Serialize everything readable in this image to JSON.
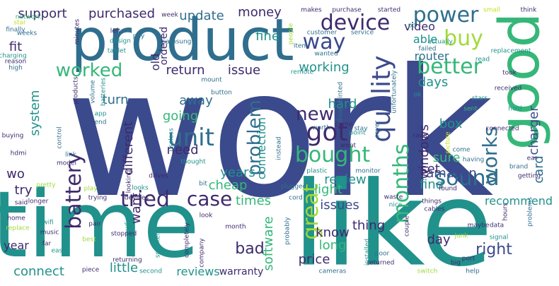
{
  "colors": {
    "navy": "#3b4a8c",
    "steel": "#2f6e8e",
    "blue": "#31688e",
    "teal": "#21918c",
    "green": "#35b779",
    "lime": "#a0da39",
    "yellow": "#c8e020",
    "purple": "#482475",
    "darkpurple": "#3e2a6d"
  },
  "words": [
    {
      "id": "work",
      "text": "work"
    },
    {
      "id": "like",
      "text": "like"
    },
    {
      "id": "time",
      "text": "time"
    },
    {
      "id": "product",
      "text": "product"
    },
    {
      "id": "good",
      "text": "good"
    },
    {
      "id": "device",
      "text": "device"
    },
    {
      "id": "power",
      "text": "power"
    },
    {
      "id": "way",
      "text": "way"
    },
    {
      "id": "buy",
      "text": "buy"
    },
    {
      "id": "better",
      "text": "better"
    },
    {
      "id": "tried",
      "text": "tried"
    },
    {
      "id": "unit",
      "text": "unit"
    },
    {
      "id": "got",
      "text": "got"
    },
    {
      "id": "bought",
      "text": "bought"
    },
    {
      "id": "quality",
      "text": "quality"
    },
    {
      "id": "great",
      "text": "great"
    },
    {
      "id": "months",
      "text": "months"
    },
    {
      "id": "works",
      "text": "works"
    },
    {
      "id": "sound",
      "text": "sound"
    },
    {
      "id": "battery",
      "text": "battery"
    },
    {
      "id": "worked",
      "text": "worked"
    },
    {
      "id": "case",
      "text": "case"
    },
    {
      "id": "new",
      "text": "new"
    },
    {
      "id": "problem",
      "text": "problem"
    },
    {
      "id": "support",
      "text": "support"
    },
    {
      "id": "purchased",
      "text": "purchased"
    },
    {
      "id": "update",
      "text": "update"
    },
    {
      "id": "money",
      "text": "money"
    },
    {
      "id": "fine",
      "text": "fine"
    },
    {
      "id": "video",
      "text": "video"
    },
    {
      "id": "able",
      "text": "able"
    },
    {
      "id": "router",
      "text": "router"
    },
    {
      "id": "charger",
      "text": "charger"
    },
    {
      "id": "card",
      "text": "card"
    },
    {
      "id": "return",
      "text": "return"
    },
    {
      "id": "issue",
      "text": "issue"
    },
    {
      "id": "working",
      "text": "working"
    },
    {
      "id": "days",
      "text": "days"
    },
    {
      "id": "fit",
      "text": "fit"
    },
    {
      "id": "old",
      "text": "old"
    },
    {
      "id": "ordered",
      "text": "ordered"
    },
    {
      "id": "system",
      "text": "system"
    },
    {
      "id": "turn",
      "text": "turn"
    },
    {
      "id": "away",
      "text": "away"
    },
    {
      "id": "going",
      "text": "going"
    },
    {
      "id": "hard",
      "text": "hard"
    },
    {
      "id": "connection",
      "text": "connection"
    },
    {
      "id": "box",
      "text": "box"
    },
    {
      "id": "windows",
      "text": "windows"
    },
    {
      "id": "recommend",
      "text": "recommend"
    },
    {
      "id": "different",
      "text": "different"
    },
    {
      "id": "need",
      "text": "need"
    },
    {
      "id": "years",
      "text": "years"
    },
    {
      "id": "sure",
      "text": "sure"
    },
    {
      "id": "amazon",
      "text": "amazon"
    },
    {
      "id": "wo",
      "text": "wo"
    },
    {
      "id": "want",
      "text": "want"
    },
    {
      "id": "cheap",
      "text": "cheap"
    },
    {
      "id": "review",
      "text": "review"
    },
    {
      "id": "set",
      "text": "set"
    },
    {
      "id": "find",
      "text": "find"
    },
    {
      "id": "try",
      "text": "try"
    },
    {
      "id": "light",
      "text": "light"
    },
    {
      "id": "times",
      "text": "times"
    },
    {
      "id": "issues",
      "text": "issues"
    },
    {
      "id": "thing",
      "text": "thing"
    },
    {
      "id": "know",
      "text": "know"
    },
    {
      "id": "right",
      "text": "right"
    },
    {
      "id": "year",
      "text": "year"
    },
    {
      "id": "bad",
      "text": "bad"
    },
    {
      "id": "software",
      "text": "software"
    },
    {
      "id": "long",
      "text": "long"
    },
    {
      "id": "day",
      "text": "day"
    },
    {
      "id": "price",
      "text": "price"
    },
    {
      "id": "connect",
      "text": "connect"
    },
    {
      "id": "little",
      "text": "little"
    },
    {
      "id": "reviews",
      "text": "reviews"
    },
    {
      "id": "warranty",
      "text": "warranty"
    },
    {
      "id": "customer",
      "text": "customer"
    },
    {
      "id": "service",
      "text": "service"
    },
    {
      "id": "wanted",
      "text": "wanted"
    },
    {
      "id": "failed",
      "text": "failed"
    },
    {
      "id": "replacement",
      "text": "replacement"
    },
    {
      "id": "read",
      "text": "read"
    },
    {
      "id": "took",
      "text": "took"
    },
    {
      "id": "received",
      "text": "received"
    },
    {
      "id": "hold",
      "text": "hold"
    },
    {
      "id": "stars",
      "text": "stars"
    },
    {
      "id": "sent",
      "text": "sent"
    },
    {
      "id": "connected",
      "text": "connected"
    },
    {
      "id": "ear",
      "text": "ear"
    },
    {
      "id": "makes",
      "text": "makes"
    },
    {
      "id": "purchase",
      "text": "purchase"
    },
    {
      "id": "started",
      "text": "started"
    },
    {
      "id": "small",
      "text": "small"
    },
    {
      "id": "think",
      "text": "think"
    },
    {
      "id": "week",
      "text": "week"
    },
    {
      "id": "left",
      "text": "left"
    },
    {
      "id": "design",
      "text": "design"
    },
    {
      "id": "pay",
      "text": "pay"
    },
    {
      "id": "tablet",
      "text": "tablet"
    },
    {
      "id": "samsung",
      "text": "samsung"
    },
    {
      "id": "mount",
      "text": "mount"
    },
    {
      "id": "button",
      "text": "button"
    },
    {
      "id": "item",
      "text": "item"
    },
    {
      "id": "remote",
      "text": "remote"
    },
    {
      "id": "disappointed",
      "text": "disappointed"
    },
    {
      "id": "unfortunately",
      "text": "unfortunately"
    },
    {
      "id": "ok",
      "text": "ok"
    },
    {
      "id": "actually",
      "text": "actually"
    },
    {
      "id": "pc",
      "text": "pc"
    },
    {
      "id": "people",
      "text": "people"
    },
    {
      "id": "star",
      "text": "star"
    },
    {
      "id": "finally",
      "text": "finally"
    },
    {
      "id": "weeks",
      "text": "weeks"
    },
    {
      "id": "charging",
      "text": "charging"
    },
    {
      "id": "reason",
      "text": "reason"
    },
    {
      "id": "high",
      "text": "high"
    },
    {
      "id": "minutes",
      "text": "minutes"
    },
    {
      "id": "products",
      "text": "products"
    },
    {
      "id": "volume",
      "text": "volume"
    },
    {
      "id": "batteries",
      "text": "batteries"
    },
    {
      "id": "app",
      "text": "app"
    },
    {
      "id": "end",
      "text": "end"
    },
    {
      "id": "control",
      "text": "control"
    },
    {
      "id": "useless",
      "text": "useless"
    },
    {
      "id": "worth",
      "text": "worth"
    },
    {
      "id": "came",
      "text": "came"
    },
    {
      "id": "stay",
      "text": "stay"
    },
    {
      "id": "point",
      "text": "point"
    },
    {
      "id": "cover",
      "text": "cover"
    },
    {
      "id": "went",
      "text": "went"
    },
    {
      "id": "instead",
      "text": "instead"
    },
    {
      "id": "buying",
      "text": "buying"
    },
    {
      "id": "hdmi",
      "text": "hdmi"
    },
    {
      "id": "link",
      "text": "link"
    },
    {
      "id": "model",
      "text": "model"
    },
    {
      "id": "thought",
      "text": "thought"
    },
    {
      "id": "plastic",
      "text": "plastic"
    },
    {
      "id": "monitor",
      "text": "monitor"
    },
    {
      "id": "radio",
      "text": "radio"
    },
    {
      "id": "picture",
      "text": "picture"
    },
    {
      "id": "come",
      "text": "come"
    },
    {
      "id": "having",
      "text": "having"
    },
    {
      "id": "brand",
      "text": "brand"
    },
    {
      "id": "getting",
      "text": "getting"
    },
    {
      "id": "found",
      "text": "found"
    },
    {
      "id": "things",
      "text": "things"
    },
    {
      "id": "waste",
      "text": "waste"
    },
    {
      "id": "nice",
      "text": "nice"
    },
    {
      "id": "plugged",
      "text": "plugged"
    },
    {
      "id": "cord",
      "text": "cord"
    },
    {
      "id": "pretty",
      "text": "pretty"
    },
    {
      "id": "play",
      "text": "play"
    },
    {
      "id": "looks",
      "text": "looks"
    },
    {
      "id": "drives",
      "text": "drives"
    },
    {
      "id": "devices",
      "text": "devices"
    },
    {
      "id": "bit",
      "text": "bit"
    },
    {
      "id": "looking",
      "text": "looking"
    },
    {
      "id": "trying",
      "text": "trying"
    },
    {
      "id": "said",
      "text": "said"
    },
    {
      "id": "longer",
      "text": "longer"
    },
    {
      "id": "home",
      "text": "home"
    },
    {
      "id": "wifi",
      "text": "wifi"
    },
    {
      "id": "music",
      "text": "music"
    },
    {
      "id": "replace",
      "text": "replace"
    },
    {
      "id": "far",
      "text": "far"
    },
    {
      "id": "easy",
      "text": "easy"
    },
    {
      "id": "best",
      "text": "best"
    },
    {
      "id": "pair",
      "text": "pair"
    },
    {
      "id": "audio",
      "text": "audio"
    },
    {
      "id": "stopped",
      "text": "stopped"
    },
    {
      "id": "speakers",
      "text": "speakers"
    },
    {
      "id": "completely",
      "text": "completely"
    },
    {
      "id": "look",
      "text": "look"
    },
    {
      "id": "company",
      "text": "company"
    },
    {
      "id": "month",
      "text": "month"
    },
    {
      "id": "probably",
      "text": "probably"
    },
    {
      "id": "installed",
      "text": "installed"
    },
    {
      "id": "couple",
      "text": "couple"
    },
    {
      "id": "poor",
      "text": "poor"
    },
    {
      "id": "returned",
      "text": "returned"
    },
    {
      "id": "cameras",
      "text": "cameras"
    },
    {
      "id": "returning",
      "text": "returning"
    },
    {
      "id": "piece",
      "text": "piece"
    },
    {
      "id": "second",
      "text": "second"
    },
    {
      "id": "switch",
      "text": "switch"
    },
    {
      "id": "cables",
      "text": "cables"
    },
    {
      "id": "problems",
      "text": "problems"
    },
    {
      "id": "hours",
      "text": "hours"
    },
    {
      "id": "maybe",
      "text": "maybe"
    },
    {
      "id": "data",
      "text": "data"
    },
    {
      "id": "signal",
      "text": "signal"
    },
    {
      "id": "port",
      "text": "port"
    },
    {
      "id": "big",
      "text": "big"
    },
    {
      "id": "help",
      "text": "help"
    },
    {
      "id": "junk",
      "text": "junk"
    },
    {
      "id": "network",
      "text": "network"
    }
  ]
}
